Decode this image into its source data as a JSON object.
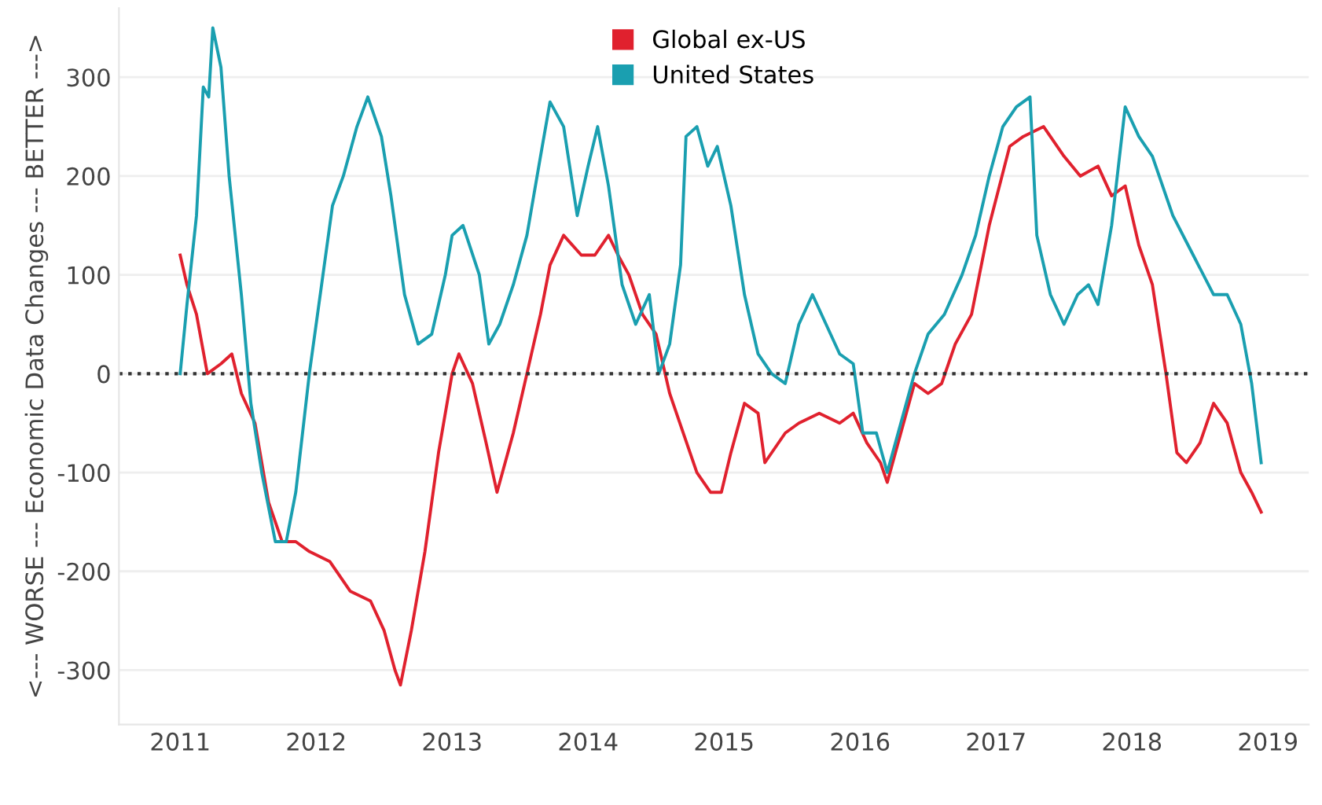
{
  "chart_data": {
    "type": "line",
    "ylabel": "<--- WORSE --- Economic Data Changes --- BETTER --->",
    "xlim": [
      2010.55,
      2019.3
    ],
    "xticks": [
      2011,
      2012,
      2013,
      2014,
      2015,
      2016,
      2017,
      2018,
      2019
    ],
    "ylim": [
      -355,
      370
    ],
    "yticks": [
      -300,
      -200,
      -100,
      0,
      100,
      200,
      300
    ],
    "grid": "y",
    "legend": "top",
    "line_style": "solid",
    "marker": "none",
    "ref_lines": [
      {
        "axis": "y",
        "value": 0,
        "color": "#333333",
        "line_style": "dotted"
      }
    ],
    "series": [
      {
        "name": "Global ex-US",
        "color": "#e0212e",
        "x": [
          2011.0,
          2011.05,
          2011.12,
          2011.2,
          2011.3,
          2011.38,
          2011.45,
          2011.55,
          2011.65,
          2011.75,
          2011.85,
          2011.95,
          2012.1,
          2012.25,
          2012.4,
          2012.5,
          2012.58,
          2012.62,
          2012.7,
          2012.8,
          2012.9,
          2013.0,
          2013.05,
          2013.15,
          2013.25,
          2013.33,
          2013.45,
          2013.55,
          2013.65,
          2013.72,
          2013.82,
          2013.95,
          2014.05,
          2014.15,
          2014.22,
          2014.3,
          2014.4,
          2014.5,
          2014.6,
          2014.7,
          2014.8,
          2014.9,
          2014.98,
          2015.05,
          2015.15,
          2015.25,
          2015.3,
          2015.45,
          2015.55,
          2015.7,
          2015.85,
          2015.95,
          2016.05,
          2016.15,
          2016.2,
          2016.3,
          2016.4,
          2016.5,
          2016.6,
          2016.7,
          2016.82,
          2016.95,
          2017.1,
          2017.2,
          2017.35,
          2017.5,
          2017.62,
          2017.75,
          2017.85,
          2017.95,
          2018.05,
          2018.15,
          2018.25,
          2018.33,
          2018.4,
          2018.5,
          2018.6,
          2018.7,
          2018.8,
          2018.88,
          2018.95
        ],
        "values": [
          120,
          90,
          60,
          0,
          10,
          20,
          -20,
          -50,
          -130,
          -170,
          -170,
          -180,
          -190,
          -220,
          -230,
          -260,
          -300,
          -315,
          -260,
          -180,
          -80,
          0,
          20,
          -10,
          -70,
          -120,
          -60,
          0,
          60,
          110,
          140,
          120,
          120,
          140,
          120,
          100,
          60,
          40,
          -20,
          -60,
          -100,
          -120,
          -120,
          -80,
          -30,
          -40,
          -90,
          -60,
          -50,
          -40,
          -50,
          -40,
          -70,
          -90,
          -110,
          -60,
          -10,
          -20,
          -10,
          30,
          60,
          150,
          230,
          240,
          250,
          220,
          200,
          210,
          180,
          190,
          130,
          90,
          0,
          -80,
          -90,
          -70,
          -30,
          -50,
          -100,
          -120,
          -140
        ]
      },
      {
        "name": "United States",
        "color": "#1a9fb0",
        "x": [
          2011.0,
          2011.05,
          2011.12,
          2011.17,
          2011.21,
          2011.24,
          2011.3,
          2011.36,
          2011.45,
          2011.52,
          2011.6,
          2011.7,
          2011.78,
          2011.85,
          2011.95,
          2012.05,
          2012.12,
          2012.2,
          2012.3,
          2012.38,
          2012.48,
          2012.55,
          2012.65,
          2012.75,
          2012.85,
          2012.95,
          2013.0,
          2013.08,
          2013.2,
          2013.27,
          2013.35,
          2013.45,
          2013.55,
          2013.65,
          2013.72,
          2013.82,
          2013.92,
          2014.0,
          2014.07,
          2014.15,
          2014.25,
          2014.35,
          2014.45,
          2014.52,
          2014.6,
          2014.68,
          2014.72,
          2014.8,
          2014.88,
          2014.95,
          2015.05,
          2015.15,
          2015.25,
          2015.35,
          2015.45,
          2015.55,
          2015.65,
          2015.75,
          2015.85,
          2015.95,
          2016.02,
          2016.12,
          2016.2,
          2016.28,
          2016.4,
          2016.5,
          2016.62,
          2016.75,
          2016.85,
          2016.95,
          2017.05,
          2017.15,
          2017.25,
          2017.3,
          2017.4,
          2017.5,
          2017.6,
          2017.68,
          2017.75,
          2017.85,
          2017.95,
          2018.05,
          2018.15,
          2018.3,
          2018.45,
          2018.6,
          2018.7,
          2018.8,
          2018.88,
          2018.95
        ],
        "values": [
          0,
          70,
          160,
          290,
          280,
          350,
          310,
          200,
          80,
          -30,
          -100,
          -170,
          -170,
          -120,
          0,
          100,
          170,
          200,
          250,
          280,
          240,
          180,
          80,
          30,
          40,
          100,
          140,
          150,
          100,
          30,
          50,
          90,
          140,
          220,
          275,
          250,
          160,
          210,
          250,
          190,
          90,
          50,
          80,
          0,
          30,
          110,
          240,
          250,
          210,
          230,
          170,
          80,
          20,
          0,
          -10,
          50,
          80,
          50,
          20,
          10,
          -60,
          -60,
          -100,
          -60,
          0,
          40,
          60,
          100,
          140,
          200,
          250,
          270,
          280,
          140,
          80,
          50,
          80,
          90,
          70,
          150,
          270,
          240,
          220,
          160,
          120,
          80,
          80,
          50,
          -10,
          -90
        ]
      }
    ]
  }
}
